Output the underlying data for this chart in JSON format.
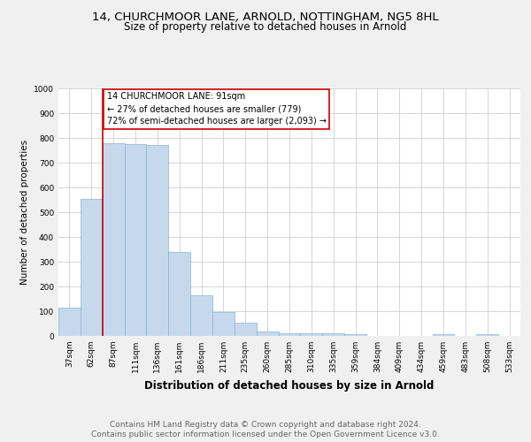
{
  "title": "14, CHURCHMOOR LANE, ARNOLD, NOTTINGHAM, NG5 8HL",
  "subtitle": "Size of property relative to detached houses in Arnold",
  "xlabel": "Distribution of detached houses by size in Arnold",
  "ylabel": "Number of detached properties",
  "categories": [
    "37sqm",
    "62sqm",
    "87sqm",
    "111sqm",
    "136sqm",
    "161sqm",
    "186sqm",
    "211sqm",
    "235sqm",
    "260sqm",
    "285sqm",
    "310sqm",
    "335sqm",
    "359sqm",
    "384sqm",
    "409sqm",
    "434sqm",
    "459sqm",
    "483sqm",
    "508sqm",
    "533sqm"
  ],
  "values": [
    113,
    554,
    779,
    775,
    770,
    340,
    163,
    97,
    53,
    18,
    12,
    9,
    9,
    7,
    0,
    0,
    0,
    8,
    0,
    8,
    0
  ],
  "bar_color": "#c6d9ec",
  "bar_edge_color": "#8ab4d4",
  "property_line_color": "#cc0000",
  "annotation_text": "14 CHURCHMOOR LANE: 91sqm\n← 27% of detached houses are smaller (779)\n72% of semi-detached houses are larger (2,093) →",
  "annotation_box_color": "#ffffff",
  "annotation_box_edge_color": "#cc0000",
  "ylim": [
    0,
    1000
  ],
  "yticks": [
    0,
    100,
    200,
    300,
    400,
    500,
    600,
    700,
    800,
    900,
    1000
  ],
  "footer_line1": "Contains HM Land Registry data © Crown copyright and database right 2024.",
  "footer_line2": "Contains public sector information licensed under the Open Government Licence v3.0.",
  "bg_color": "#f0f0f0",
  "plot_bg_color": "#ffffff",
  "grid_color": "#d0d0d0",
  "title_fontsize": 9.5,
  "subtitle_fontsize": 8.5,
  "xlabel_fontsize": 8.5,
  "ylabel_fontsize": 7.5,
  "tick_fontsize": 6.5,
  "footer_fontsize": 6.5,
  "annotation_fontsize": 7.0
}
